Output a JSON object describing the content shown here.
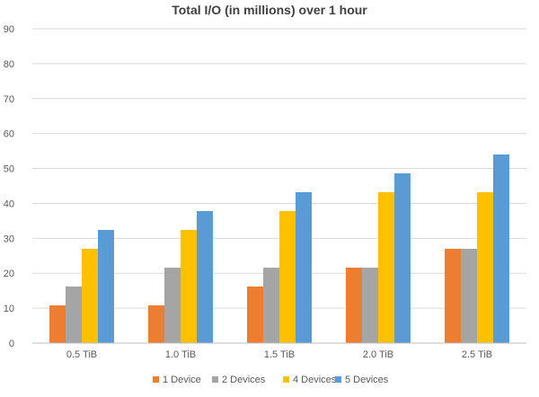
{
  "chart_data": {
    "type": "bar",
    "title": "Total I/O (in millions) over 1 hour",
    "xlabel": "",
    "ylabel": "",
    "categories": [
      "0.5 TiB",
      "1.0 TiB",
      "1.5 TiB",
      "2.0 TiB",
      "2.5 TiB"
    ],
    "series": [
      {
        "name": "1 Device",
        "color": "#ed7d31",
        "values": [
          10.8,
          10.8,
          16.2,
          21.6,
          27.0
        ]
      },
      {
        "name": "2 Devices",
        "color": "#a5a5a5",
        "values": [
          16.2,
          21.6,
          21.6,
          21.6,
          27.0
        ]
      },
      {
        "name": "4 Devices",
        "color": "#ffc000",
        "values": [
          27.0,
          32.4,
          37.8,
          43.2,
          43.2
        ]
      },
      {
        "name": "5 Devices",
        "color": "#5b9bd5",
        "values": [
          32.4,
          37.8,
          43.2,
          48.6,
          54.0
        ]
      }
    ],
    "ylim": [
      0,
      90
    ],
    "yticks": [
      "0",
      "10",
      "20",
      "30",
      "40",
      "50",
      "60",
      "70",
      "80",
      "90"
    ],
    "grid": true,
    "legend_position": "bottom"
  }
}
